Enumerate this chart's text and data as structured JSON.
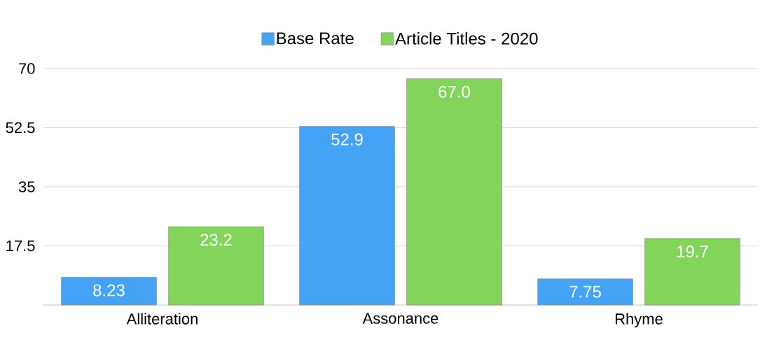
{
  "chart_data": {
    "type": "bar",
    "categories": [
      "Alliteration",
      "Assonance",
      "Rhyme"
    ],
    "series": [
      {
        "name": "Base Rate",
        "color": "#45a3f5",
        "values": [
          8.23,
          52.9,
          7.75
        ],
        "value_labels": [
          "8.23",
          "52.9",
          "7.75"
        ]
      },
      {
        "name": "Article Titles - 2020",
        "color": "#83d45a",
        "values": [
          23.2,
          67.0,
          19.7
        ],
        "value_labels": [
          "23.2",
          "67.0",
          "19.7"
        ]
      }
    ],
    "ylim": [
      0,
      70
    ],
    "yticks": [
      {
        "value": 0,
        "label": null
      },
      17.5,
      35,
      52.5,
      70
    ],
    "grid": "y",
    "legend": "top"
  }
}
